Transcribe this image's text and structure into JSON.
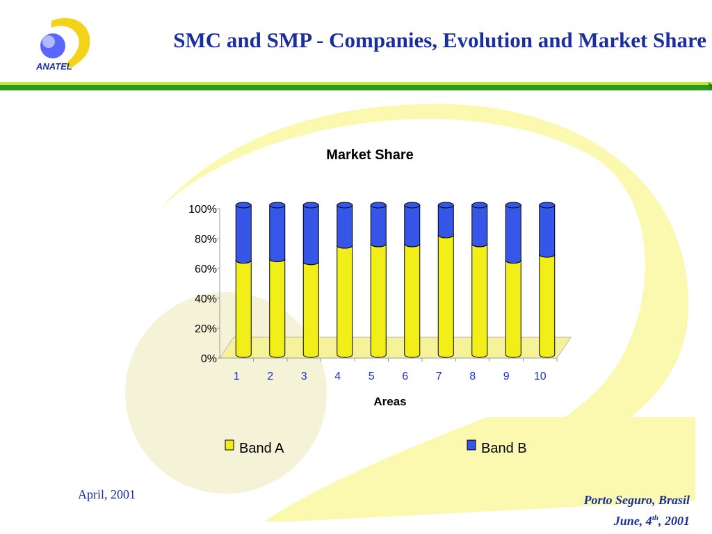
{
  "slide": {
    "logo_text": "ANATEL",
    "title": "SMC and SMP - Companies, Evolution and Market Share",
    "date_left": "April, 2001",
    "location": "Porto Seguro, Brasil",
    "date_right_prefix": "June, 4",
    "date_right_sup": "th",
    "date_right_suffix": ", 2001",
    "colors": {
      "title": "#1a2f9c",
      "rule_green": "#2a9a1f",
      "bg_swirl": "#fbf8a0"
    }
  },
  "chart_data": {
    "type": "bar",
    "stacked": true,
    "percent": true,
    "title": "Market Share",
    "xlabel": "Areas",
    "ylabel": "",
    "categories": [
      "1",
      "2",
      "3",
      "4",
      "5",
      "6",
      "7",
      "8",
      "9",
      "10"
    ],
    "series": [
      {
        "name": "Band A",
        "color": "#f2ee17",
        "values": [
          63,
          64,
          62,
          73,
          74,
          74,
          80,
          74,
          63,
          67
        ]
      },
      {
        "name": "Band B",
        "color": "#3556e6",
        "values": [
          37,
          36,
          38,
          27,
          26,
          26,
          20,
          26,
          37,
          33
        ]
      }
    ],
    "ylim": [
      0,
      100
    ],
    "yticks": [
      "0%",
      "20%",
      "40%",
      "60%",
      "80%",
      "100%"
    ],
    "legend": "bottom"
  }
}
